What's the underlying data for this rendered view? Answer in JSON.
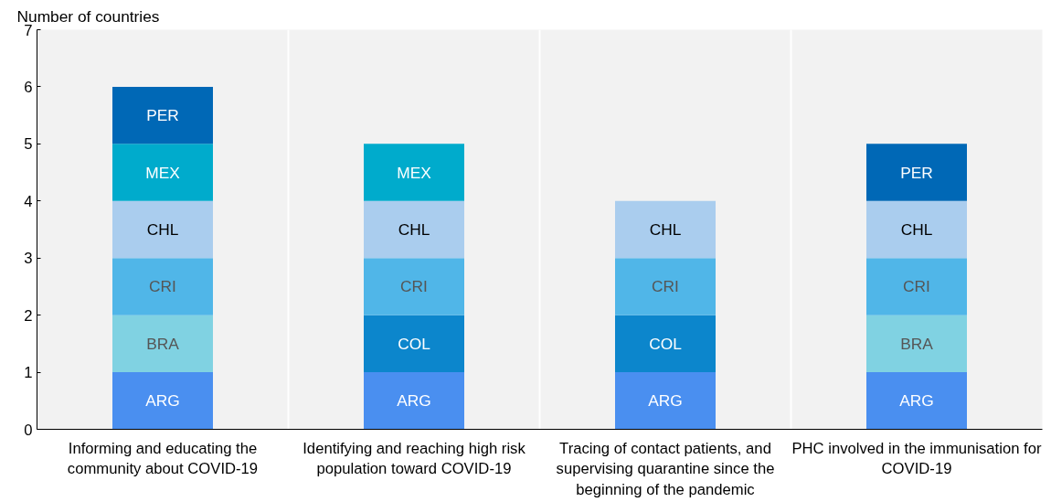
{
  "chart_data": {
    "type": "bar",
    "stacked": true,
    "ylabel": "Number of countries",
    "ylim": [
      0,
      7
    ],
    "yticks": [
      0,
      1,
      2,
      3,
      4,
      5,
      6,
      7
    ],
    "grid": "x",
    "legend": false,
    "categories": [
      "Informing and educating the community about COVID-19",
      "Identifying and reaching high risk population toward COVID-19",
      "Tracing of contact patients, and supervising quarantine since the beginning of the pandemic",
      "PHC involved in the immunisation for COVID-19"
    ],
    "series": [
      {
        "name": "ARG",
        "color": "#4a8ff0",
        "values": [
          1,
          1,
          1,
          1
        ]
      },
      {
        "name": "BRA",
        "color": "#80d2e2",
        "values": [
          1,
          null,
          null,
          1
        ]
      },
      {
        "name": "COL",
        "color": "#0c86cc",
        "values": [
          null,
          1,
          1,
          null
        ]
      },
      {
        "name": "CRI",
        "color": "#50b6e8",
        "values": [
          1,
          1,
          1,
          1
        ]
      },
      {
        "name": "CHL",
        "color": "#aacdee",
        "values": [
          1,
          1,
          1,
          1
        ]
      },
      {
        "name": "MEX",
        "color": "#00abcc",
        "values": [
          1,
          1,
          null,
          null
        ]
      },
      {
        "name": "PER",
        "color": "#0068b6",
        "values": [
          1,
          null,
          null,
          1
        ]
      }
    ]
  }
}
